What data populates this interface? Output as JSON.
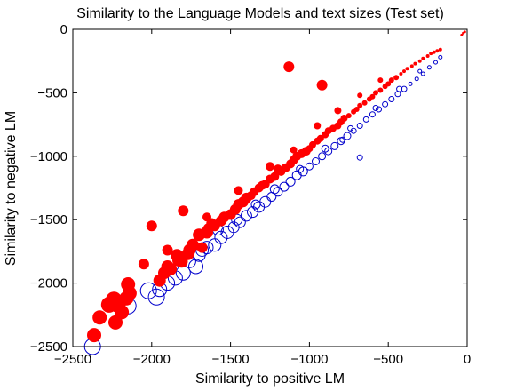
{
  "chart_data": {
    "type": "scatter",
    "title": "Similarity to the Language Models and text sizes (Test set)",
    "xlabel": "Similarity to positive LM",
    "ylabel": "Similarity to negative LM",
    "xlim": [
      -2500,
      0
    ],
    "ylim": [
      -2500,
      0
    ],
    "xticks": [
      -2500,
      -2000,
      -1500,
      -1000,
      -500,
      0
    ],
    "yticks": [
      -2500,
      -2000,
      -1500,
      -1000,
      -500,
      0
    ],
    "xtick_labels": [
      "−2500",
      "−2000",
      "−1500",
      "−1000",
      "−500",
      "0"
    ],
    "ytick_labels": [
      "−2500",
      "−2000",
      "−1500",
      "−1000",
      "−500",
      "0"
    ],
    "grid": false,
    "legend": "none",
    "marker_size_encodes": "text size",
    "colors": {
      "red_series": "#ff0000",
      "blue_series": "#0000cc"
    },
    "series": [
      {
        "color": "red",
        "marker": "filled-circle",
        "points": [
          [
            -1130,
            -295
          ],
          [
            -920,
            -440
          ],
          [
            -2365,
            -2410
          ],
          [
            -2330,
            -2270
          ],
          [
            -2270,
            -2170
          ],
          [
            -2240,
            -2130
          ],
          [
            -2215,
            -2170
          ],
          [
            -2230,
            -2310
          ],
          [
            -2190,
            -2230
          ],
          [
            -2160,
            -2120
          ],
          [
            -2150,
            -2010
          ],
          [
            -2140,
            -2080
          ],
          [
            -2000,
            -1550
          ],
          [
            -1950,
            -1980
          ],
          [
            -1920,
            -1920
          ],
          [
            -1900,
            -1870
          ],
          [
            -1880,
            -1890
          ],
          [
            -1840,
            -1780
          ],
          [
            -1830,
            -1820
          ],
          [
            -1810,
            -1830
          ],
          [
            -1800,
            -1430
          ],
          [
            -1770,
            -1770
          ],
          [
            -1760,
            -1740
          ],
          [
            -1740,
            -1700
          ],
          [
            -1700,
            -1620
          ],
          [
            -1680,
            -1720
          ],
          [
            -1650,
            -1600
          ],
          [
            -1640,
            -1570
          ],
          [
            -1620,
            -1530
          ],
          [
            -1600,
            -1550
          ],
          [
            -1560,
            -1510
          ],
          [
            -1540,
            -1480
          ],
          [
            -1500,
            -1460
          ],
          [
            -1470,
            -1420
          ],
          [
            -1450,
            -1380
          ],
          [
            -1420,
            -1360
          ],
          [
            -1400,
            -1330
          ],
          [
            -1370,
            -1310
          ],
          [
            -1350,
            -1280
          ],
          [
            -1320,
            -1250
          ],
          [
            -1300,
            -1230
          ],
          [
            -1280,
            -1220
          ],
          [
            -1250,
            -1180
          ],
          [
            -1220,
            -1160
          ],
          [
            -1200,
            -1100
          ],
          [
            -1180,
            -1120
          ],
          [
            -1150,
            -1090
          ],
          [
            -1120,
            -1060
          ],
          [
            -1100,
            -1030
          ],
          [
            -1080,
            -1000
          ],
          [
            -1050,
            -980
          ],
          [
            -1020,
            -960
          ],
          [
            -1000,
            -940
          ],
          [
            -980,
            -910
          ],
          [
            -950,
            -880
          ],
          [
            -930,
            -860
          ],
          [
            -900,
            -830
          ],
          [
            -880,
            -800
          ],
          [
            -850,
            -780
          ],
          [
            -820,
            -760
          ],
          [
            -800,
            -730
          ],
          [
            -780,
            -700
          ],
          [
            -750,
            -680
          ],
          [
            -720,
            -650
          ],
          [
            -700,
            -630
          ],
          [
            -680,
            -600
          ],
          [
            -650,
            -580
          ],
          [
            -620,
            -550
          ],
          [
            -600,
            -530
          ],
          [
            -580,
            -500
          ],
          [
            -550,
            -480
          ],
          [
            -520,
            -450
          ],
          [
            -500,
            -430
          ],
          [
            -480,
            -400
          ],
          [
            -450,
            -380
          ],
          [
            -420,
            -350
          ],
          [
            -400,
            -330
          ],
          [
            -380,
            -310
          ],
          [
            -350,
            -290
          ],
          [
            -330,
            -270
          ],
          [
            -300,
            -250
          ],
          [
            -280,
            -230
          ],
          [
            -250,
            -210
          ],
          [
            -230,
            -190
          ],
          [
            -210,
            -180
          ],
          [
            -190,
            -170
          ],
          [
            -170,
            -160
          ],
          [
            -35,
            -45
          ],
          [
            -25,
            -30
          ],
          [
            -15,
            -20
          ],
          [
            -2050,
            -1850
          ],
          [
            -1900,
            -1740
          ],
          [
            -1650,
            -1480
          ],
          [
            -1450,
            -1270
          ],
          [
            -1250,
            -1080
          ],
          [
            -1100,
            -950
          ],
          [
            -950,
            -760
          ],
          [
            -820,
            -640
          ],
          [
            -680,
            -520
          ],
          [
            -550,
            -400
          ]
        ],
        "sizes": [
          6,
          6,
          8,
          8,
          9,
          9,
          9,
          8,
          8,
          8,
          8,
          8,
          6,
          7,
          7,
          7,
          7,
          7,
          7,
          7,
          6,
          7,
          7,
          7,
          7,
          6,
          7,
          6,
          6,
          6,
          6,
          6,
          6,
          6,
          6,
          6,
          6,
          5,
          5,
          5,
          5,
          5,
          5,
          5,
          5,
          5,
          5,
          5,
          5,
          5,
          5,
          5,
          4,
          4,
          4,
          4,
          4,
          4,
          4,
          4,
          4,
          4,
          3,
          3,
          3,
          3,
          3,
          3,
          3,
          3,
          3,
          3,
          3,
          3,
          3,
          2,
          2,
          2,
          2,
          2,
          2,
          2,
          2,
          2,
          2,
          2,
          2,
          1.5,
          1.5,
          1.5,
          6,
          6,
          5,
          5,
          5,
          4,
          4,
          4,
          3,
          3
        ]
      },
      {
        "color": "blue",
        "marker": "open-circle",
        "points": [
          [
            -2375,
            -2500
          ],
          [
            -2150,
            -2180
          ],
          [
            -2020,
            -2060
          ],
          [
            -1970,
            -2110
          ],
          [
            -1950,
            -2050
          ],
          [
            -1900,
            -2000
          ],
          [
            -1850,
            -1960
          ],
          [
            -1800,
            -1920
          ],
          [
            -1760,
            -1830
          ],
          [
            -1720,
            -1870
          ],
          [
            -1700,
            -1780
          ],
          [
            -1680,
            -1740
          ],
          [
            -1650,
            -1720
          ],
          [
            -1600,
            -1700
          ],
          [
            -1560,
            -1640
          ],
          [
            -1520,
            -1600
          ],
          [
            -1480,
            -1560
          ],
          [
            -1440,
            -1520
          ],
          [
            -1400,
            -1470
          ],
          [
            -1360,
            -1440
          ],
          [
            -1320,
            -1400
          ],
          [
            -1280,
            -1360
          ],
          [
            -1240,
            -1320
          ],
          [
            -1200,
            -1280
          ],
          [
            -1160,
            -1240
          ],
          [
            -1120,
            -1200
          ],
          [
            -1080,
            -1150
          ],
          [
            -1040,
            -1120
          ],
          [
            -1000,
            -1080
          ],
          [
            -960,
            -1040
          ],
          [
            -920,
            -1000
          ],
          [
            -880,
            -960
          ],
          [
            -840,
            -920
          ],
          [
            -800,
            -880
          ],
          [
            -760,
            -840
          ],
          [
            -720,
            -800
          ],
          [
            -680,
            -760
          ],
          [
            -640,
            -710
          ],
          [
            -600,
            -670
          ],
          [
            -560,
            -630
          ],
          [
            -520,
            -590
          ],
          [
            -480,
            -550
          ],
          [
            -440,
            -510
          ],
          [
            -400,
            -470
          ],
          [
            -360,
            -430
          ],
          [
            -320,
            -390
          ],
          [
            -280,
            -350
          ],
          [
            -240,
            -300
          ],
          [
            -200,
            -260
          ],
          [
            -170,
            -220
          ],
          [
            -790,
            -870
          ],
          [
            -680,
            -1010
          ],
          [
            -1580,
            -1580
          ],
          [
            -1460,
            -1500
          ],
          [
            -1340,
            -1380
          ],
          [
            -1220,
            -1260
          ],
          [
            -1060,
            -1100
          ],
          [
            -900,
            -940
          ],
          [
            -740,
            -780
          ],
          [
            -580,
            -620
          ],
          [
            -430,
            -470
          ],
          [
            -300,
            -330
          ]
        ],
        "sizes": [
          9,
          9,
          9,
          9,
          8,
          8,
          8,
          8,
          7,
          8,
          7,
          7,
          7,
          7,
          7,
          7,
          6,
          6,
          6,
          6,
          6,
          6,
          5,
          5,
          5,
          5,
          5,
          5,
          4,
          4,
          4,
          4,
          4,
          4,
          4,
          3,
          3,
          3,
          3,
          3,
          3,
          3,
          3,
          3,
          2,
          2,
          2,
          2,
          2,
          2,
          3,
          3,
          6,
          6,
          5,
          5,
          4,
          4,
          3,
          3,
          3,
          2
        ]
      }
    ]
  }
}
